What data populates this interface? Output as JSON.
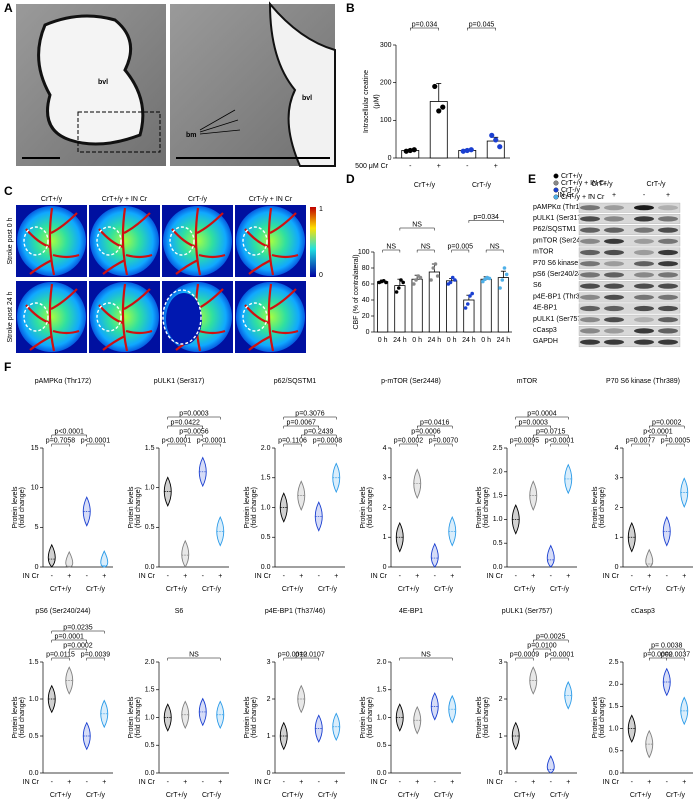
{
  "panel_labels": [
    "A",
    "B",
    "C",
    "D",
    "E",
    "F"
  ],
  "panel_a": {
    "labels": [
      "bvl",
      "bvl",
      "bm"
    ]
  },
  "panel_c": {
    "columns": [
      "CrT+/y",
      "CrT+/y + IN Cr",
      "CrT-/y",
      "CrT-/y + IN Cr"
    ],
    "rows": [
      "Stroke post 0 h",
      "Stroke post 24 h"
    ],
    "colorbar": [
      1,
      0
    ]
  },
  "panel_e": {
    "groups": [
      "CrT+/y",
      "CrT-/y"
    ],
    "group_colors": [
      "#000000",
      "#1a3fd0"
    ],
    "treatment": "IN Cr",
    "signs": [
      "-",
      "+",
      "-",
      "+"
    ],
    "proteins": [
      "pAMPKα (Thr172)",
      "pULK1 (Ser317)",
      "P62/SQSTM1",
      "pmTOR (Ser2448)",
      "mTOR",
      "P70 S6 kinase (Thr389)",
      "pS6 (Ser240/244)",
      "S6",
      "p4E-BP1 (Thr37/46)",
      "4E-BP1",
      "pULK1 (Ser757)",
      "cCasp3",
      "GAPDH"
    ]
  },
  "chart_data": [
    {
      "type": "bar",
      "ylabel": [
        "Intracellular creatine",
        "(μM)"
      ],
      "xlabel": "500 μM Cr",
      "categories": [
        "-",
        "+",
        "-",
        "+"
      ],
      "groups": [
        "CrT+/y",
        "CrT-/y"
      ],
      "group_colors": [
        "#000000",
        "#1a3fd0"
      ],
      "values": [
        20,
        150,
        20,
        45
      ],
      "errors": [
        3,
        48,
        3,
        10
      ],
      "points": [
        [
          18,
          20,
          22
        ],
        [
          190,
          125,
          135
        ],
        [
          18,
          20,
          22
        ],
        [
          60,
          48,
          30
        ]
      ],
      "colors": [
        "#000000",
        "#000000",
        "#1a3fd0",
        "#1a3fd0"
      ],
      "ylim": [
        0,
        300
      ],
      "yticks": [
        0,
        100,
        200,
        300
      ],
      "annotations": [
        "p=0.034",
        "p=0.045"
      ]
    },
    {
      "type": "bar",
      "ylabel": "CBF (% of contralateral)",
      "categories": [
        "0 h",
        "24 h"
      ],
      "legend": "top-right",
      "series": [
        {
          "name": "CrT+/y",
          "color": "#000000",
          "values": [
            63,
            58
          ],
          "errors": [
            2,
            8
          ],
          "points": [
            [
              62,
              63,
              64,
              62
            ],
            [
              50,
              55,
              65,
              62
            ]
          ]
        },
        {
          "name": "CrT+/y + IN Cr",
          "color": "#888888",
          "values": [
            66,
            75
          ],
          "errors": [
            5,
            10
          ],
          "points": [
            [
              60,
              65,
              70,
              68
            ],
            [
              65,
              80,
              85,
              70
            ]
          ]
        },
        {
          "name": "CrT-/y",
          "color": "#1a3fd0",
          "values": [
            64,
            40
          ],
          "errors": [
            3,
            6
          ],
          "points": [
            [
              60,
              62,
              68,
              65
            ],
            [
              30,
              35,
              45,
              48
            ]
          ]
        },
        {
          "name": "CrT-/y + IN Cr",
          "color": "#4fb0e8",
          "values": [
            66,
            68
          ],
          "errors": [
            3,
            8
          ],
          "points": [
            [
              63,
              66,
              68,
              67
            ],
            [
              55,
              65,
              80,
              72
            ]
          ]
        }
      ],
      "ylim": [
        0,
        100
      ],
      "yticks": [
        0,
        20,
        40,
        60,
        80,
        100
      ],
      "annotations": [
        "NS",
        "NS",
        "p=0.005",
        "NS",
        "NS",
        "p=0.034"
      ]
    },
    {
      "type": "violin",
      "title": "pAMPKα (Thr172)",
      "ylabel": [
        "Protein levels",
        "(fold change)"
      ],
      "xlabel": "IN Cr",
      "categories": [
        "-",
        "+",
        "-",
        "+"
      ],
      "groups": [
        "CrT+/y",
        "CrT-/y"
      ],
      "group_colors": [
        "#000000",
        "#1a3fd0"
      ],
      "colors": [
        "#000000",
        "#808080",
        "#1a3fd0",
        "#2b9be8"
      ],
      "values": [
        1,
        0.1,
        7,
        0.2
      ],
      "ylim": [
        0,
        15
      ],
      "yticks": [
        0,
        5,
        10,
        15
      ],
      "annotations": [
        "p<0.0001",
        "p=0.7058",
        "p<0.0001"
      ]
    },
    {
      "type": "violin",
      "title": "pULK1 (Ser317)",
      "ylabel": [
        "Protein levels",
        "(fold change)"
      ],
      "xlabel": "IN Cr",
      "categories": [
        "-",
        "+",
        "-",
        "+"
      ],
      "groups": [
        "CrT+/y",
        "CrT-/y"
      ],
      "group_colors": [
        "#000000",
        "#1a3fd0"
      ],
      "colors": [
        "#000000",
        "#808080",
        "#1a3fd0",
        "#2b9be8"
      ],
      "values": [
        0.95,
        0.15,
        1.2,
        0.45
      ],
      "ylim": [
        0,
        1.5
      ],
      "yticks": [
        {
          "value": 0,
          "label": "0.0"
        },
        0.5,
        {
          "value": 1,
          "label": "1.0"
        },
        1.5
      ],
      "annotations": [
        "p=0.0003",
        "p=0.0422",
        "p=0.0056",
        "p<0.0001",
        "p<0.0001"
      ]
    },
    {
      "type": "violin",
      "title": "p62/SQSTM1",
      "ylabel": [
        "Protein levels",
        "(fold change)"
      ],
      "xlabel": "IN Cr",
      "categories": [
        "-",
        "+",
        "-",
        "+"
      ],
      "groups": [
        "CrT+/y",
        "CrT-/y"
      ],
      "group_colors": [
        "#000000",
        "#1a3fd0"
      ],
      "colors": [
        "#000000",
        "#808080",
        "#1a3fd0",
        "#2b9be8"
      ],
      "values": [
        1.0,
        1.2,
        0.85,
        1.5
      ],
      "ylim": [
        0,
        2
      ],
      "yticks": [
        {
          "value": 0,
          "label": "0.0"
        },
        0.5,
        {
          "value": 1,
          "label": "1.0"
        },
        1.5,
        {
          "value": 2,
          "label": "2.0"
        }
      ],
      "annotations": [
        "p=0.3076",
        "p=0.0067",
        "p=0.2439",
        "p=0.1106",
        "p=0.0008"
      ]
    },
    {
      "type": "violin",
      "title": "p-mTOR (Ser2448)",
      "ylabel": [
        "Protein levels",
        "(fold change)"
      ],
      "xlabel": "IN Cr",
      "categories": [
        "-",
        "+",
        "-",
        "+"
      ],
      "groups": [
        "CrT+/y",
        "CrT-/y"
      ],
      "group_colors": [
        "#000000",
        "#1a3fd0"
      ],
      "colors": [
        "#000000",
        "#808080",
        "#1a3fd0",
        "#2b9be8"
      ],
      "values": [
        1.0,
        2.8,
        0.3,
        1.2
      ],
      "ylim": [
        0,
        4
      ],
      "yticks": [
        0,
        1,
        2,
        3,
        4
      ],
      "annotations": [
        "p=0.0416",
        "p=0.0006",
        "p=0.0002",
        "p=0.0070"
      ]
    },
    {
      "type": "violin",
      "title": "mTOR",
      "ylabel": [
        "Protein levels",
        "(fold change)"
      ],
      "xlabel": "IN Cr",
      "categories": [
        "-",
        "+",
        "-",
        "+"
      ],
      "groups": [
        "CrT+/y",
        "CrT-/y"
      ],
      "group_colors": [
        "#000000",
        "#1a3fd0"
      ],
      "colors": [
        "#000000",
        "#808080",
        "#1a3fd0",
        "#2b9be8"
      ],
      "values": [
        1.0,
        1.5,
        0.15,
        1.85
      ],
      "ylim": [
        0,
        2.5
      ],
      "yticks": [
        {
          "value": 0,
          "label": "0.0"
        },
        0.5,
        {
          "value": 1,
          "label": "1.0"
        },
        1.5,
        {
          "value": 2,
          "label": "2.0"
        },
        2.5
      ],
      "annotations": [
        "p=0.0004",
        "p=0.0003",
        "p=0.0715",
        "p=0.0095",
        "p<0.0001"
      ]
    },
    {
      "type": "violin",
      "title": "P70 S6 kinase (Thr389)",
      "ylabel": [
        "Protein levels",
        "(fold change)"
      ],
      "xlabel": "IN Cr",
      "categories": [
        "-",
        "+",
        "-",
        "+"
      ],
      "groups": [
        "CrT+/y",
        "CrT-/y"
      ],
      "group_colors": [
        "#000000",
        "#1a3fd0"
      ],
      "colors": [
        "#000000",
        "#808080",
        "#1a3fd0",
        "#2b9be8"
      ],
      "values": [
        1.0,
        0.1,
        1.2,
        2.5
      ],
      "ylim": [
        0,
        4
      ],
      "yticks": [
        0,
        1,
        2,
        3,
        4
      ],
      "annotations": [
        "p=0.0002",
        "p<0.0001",
        "p=0.0077",
        "p=0.0005"
      ]
    },
    {
      "type": "violin",
      "title": "pS6 (Ser240/244)",
      "ylabel": [
        "Protein levels",
        "(fold change)"
      ],
      "xlabel": "IN Cr",
      "categories": [
        "-",
        "+",
        "-",
        "+"
      ],
      "groups": [
        "CrT+/y",
        "CrT-/y"
      ],
      "group_colors": [
        "#000000",
        "#1a3fd0"
      ],
      "colors": [
        "#000000",
        "#808080",
        "#1a3fd0",
        "#2b9be8"
      ],
      "values": [
        1.0,
        1.25,
        0.5,
        0.8
      ],
      "ylim": [
        0,
        1.5
      ],
      "yticks": [
        {
          "value": 0,
          "label": "0.0"
        },
        0.5,
        {
          "value": 1,
          "label": "1.0"
        },
        1.5
      ],
      "annotations": [
        "p=0.0235",
        "p=0.0001",
        "p=0.0002",
        "p=0.0115",
        "p=0.0039"
      ]
    },
    {
      "type": "violin",
      "title": "S6",
      "ylabel": [
        "Protein levels",
        "(fold change)"
      ],
      "xlabel": "IN Cr",
      "categories": [
        "-",
        "+",
        "-",
        "+"
      ],
      "groups": [
        "CrT+/y",
        "CrT-/y"
      ],
      "group_colors": [
        "#000000",
        "#1a3fd0"
      ],
      "colors": [
        "#000000",
        "#808080",
        "#1a3fd0",
        "#2b9be8"
      ],
      "values": [
        1.0,
        1.05,
        1.1,
        1.05
      ],
      "ylim": [
        0,
        2
      ],
      "yticks": [
        {
          "value": 0,
          "label": "0.0"
        },
        0.5,
        {
          "value": 1,
          "label": "1.0"
        },
        1.5,
        {
          "value": 2,
          "label": "2.0"
        }
      ],
      "annotations": [
        "NS"
      ]
    },
    {
      "type": "violin",
      "title": "p4E-BP1 (Th37/46)",
      "ylabel": [
        "Protein levels",
        "(fold change)"
      ],
      "xlabel": "IN Cr",
      "categories": [
        "-",
        "+",
        "-",
        "+"
      ],
      "groups": [
        "CrT+/y",
        "CrT-/y"
      ],
      "group_colors": [
        "#000000",
        "#1a3fd0"
      ],
      "colors": [
        "#000000",
        "#808080",
        "#1a3fd0",
        "#2b9be8"
      ],
      "values": [
        1.0,
        2.0,
        1.2,
        1.25
      ],
      "ylim": [
        0,
        3
      ],
      "yticks": [
        0,
        1,
        2,
        3
      ],
      "annotations": [
        "p=0.0012",
        "p=0.0107"
      ]
    },
    {
      "type": "violin",
      "title": "4E-BP1",
      "ylabel": [
        "Protein levels",
        "(fold change)"
      ],
      "xlabel": "IN Cr",
      "categories": [
        "-",
        "+",
        "-",
        "+"
      ],
      "groups": [
        "CrT+/y",
        "CrT-/y"
      ],
      "group_colors": [
        "#000000",
        "#1a3fd0"
      ],
      "colors": [
        "#000000",
        "#808080",
        "#1a3fd0",
        "#2b9be8"
      ],
      "values": [
        1.0,
        0.95,
        1.2,
        1.15
      ],
      "ylim": [
        0,
        2
      ],
      "yticks": [
        {
          "value": 0,
          "label": "0.0"
        },
        0.5,
        {
          "value": 1,
          "label": "1.0"
        },
        1.5,
        {
          "value": 2,
          "label": "2.0"
        }
      ],
      "annotations": [
        "NS"
      ]
    },
    {
      "type": "violin",
      "title": "pULK1 (Ser757)",
      "ylabel": [
        "Protein levels",
        "(fold change)"
      ],
      "xlabel": "IN Cr",
      "categories": [
        "-",
        "+",
        "-",
        "+"
      ],
      "groups": [
        "CrT+/y",
        "CrT-/y"
      ],
      "group_colors": [
        "#000000",
        "#1a3fd0"
      ],
      "colors": [
        "#000000",
        "#808080",
        "#1a3fd0",
        "#2b9be8"
      ],
      "values": [
        1.0,
        2.5,
        0.1,
        2.1
      ],
      "ylim": [
        0,
        3
      ],
      "yticks": [
        0,
        1,
        2,
        3
      ],
      "annotations": [
        "p=0.0025",
        "p=0.0100",
        "p=0.0009",
        "p<0.0001"
      ]
    },
    {
      "type": "violin",
      "title": "cCasp3",
      "ylabel": [
        "Protein levels",
        "(fold change)"
      ],
      "xlabel": "IN Cr",
      "categories": [
        "-",
        "+",
        "-",
        "+"
      ],
      "groups": [
        "CrT+/y",
        "CrT-/y"
      ],
      "group_colors": [
        "#000000",
        "#1a3fd0"
      ],
      "colors": [
        "#000000",
        "#808080",
        "#1a3fd0",
        "#2b9be8"
      ],
      "values": [
        1.0,
        0.65,
        2.05,
        1.4
      ],
      "ylim": [
        0,
        2.5
      ],
      "yticks": [
        {
          "value": 0,
          "label": "0.0"
        },
        0.5,
        {
          "value": 1,
          "label": "1.0"
        },
        1.5,
        {
          "value": 2,
          "label": "2.0"
        },
        2.5
      ],
      "annotations": [
        "p= 0.0038",
        "p=0.0002",
        "p=0.0037"
      ]
    }
  ]
}
